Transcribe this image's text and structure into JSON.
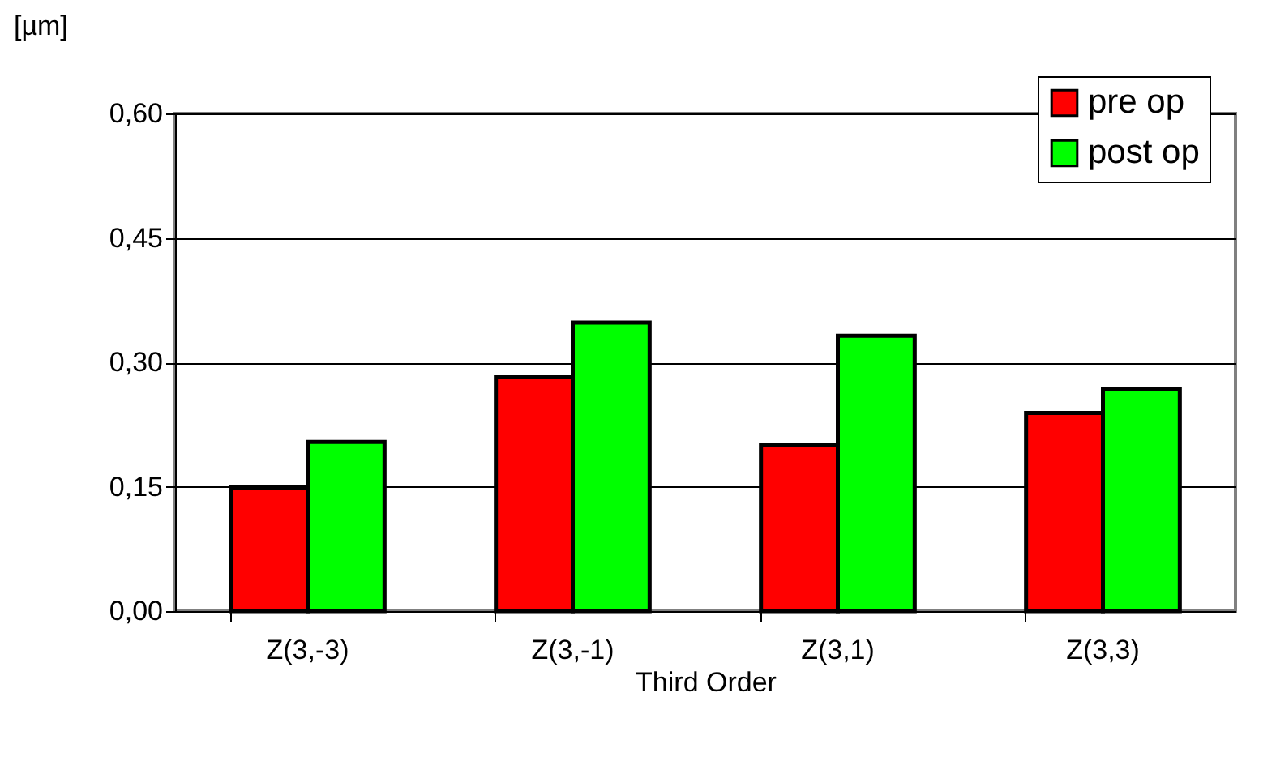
{
  "chart_data": {
    "type": "bar",
    "xlabel": "Third Order",
    "ylabel": "[µm]",
    "categories": [
      "Z(3,-3)",
      "Z(3,-1)",
      "Z(3,1)",
      "Z(3,3)"
    ],
    "series": [
      {
        "name": "pre op",
        "color": "#ff0000",
        "values": [
          0.149,
          0.282,
          0.2,
          0.239
        ]
      },
      {
        "name": "post op",
        "color": "#00ff00",
        "values": [
          0.204,
          0.348,
          0.332,
          0.268
        ]
      }
    ],
    "ylim": [
      0,
      0.6
    ],
    "yticks": [
      {
        "value": 0,
        "label": "0,00"
      },
      {
        "value": 0.15,
        "label": "0,15"
      },
      {
        "value": 0.3,
        "label": "0,30"
      },
      {
        "value": 0.45,
        "label": "0,45"
      },
      {
        "value": 0.6,
        "label": "0,60"
      }
    ],
    "grid": "y",
    "legend": "top right"
  }
}
